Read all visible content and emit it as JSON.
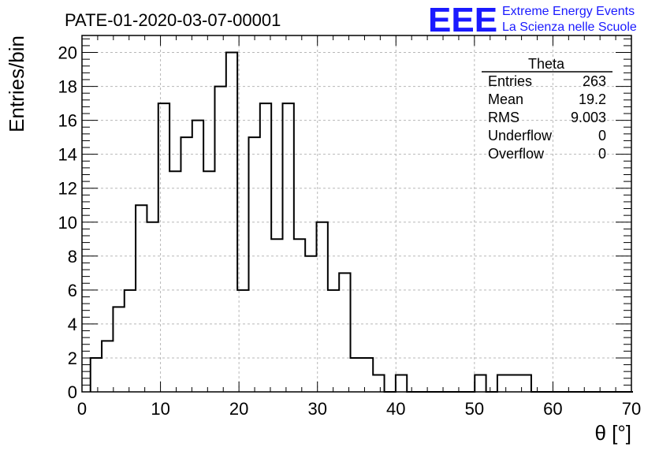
{
  "header": {
    "title": "PATE-01-2020-03-07-00001",
    "logo_text": "EEE",
    "logo_line1": "Extreme Energy Events",
    "logo_line2": "La Scienza nelle Scuole",
    "logo_color": "#1a1aff"
  },
  "stats_box": {
    "name": "Theta",
    "rows": [
      {
        "label": "Entries",
        "value": "263"
      },
      {
        "label": "Mean",
        "value": "19.2"
      },
      {
        "label": "RMS",
        "value": "9.003"
      },
      {
        "label": "Underflow",
        "value": "0"
      },
      {
        "label": "Overflow",
        "value": "0"
      }
    ]
  },
  "chart_data": {
    "type": "bar",
    "subtype": "step-histogram",
    "title": "PATE-01-2020-03-07-00001",
    "xlabel": "θ [°]",
    "ylabel": "Entries/bin",
    "xlim": [
      0,
      70
    ],
    "ylim": [
      0,
      21
    ],
    "grid": true,
    "legend": "none",
    "x_ticks": [
      0,
      10,
      20,
      30,
      40,
      50,
      60,
      70
    ],
    "y_ticks": [
      0,
      2,
      4,
      6,
      8,
      10,
      12,
      14,
      16,
      18,
      20
    ],
    "bin_width": 1.44,
    "bin_start": 1.08,
    "bin_values": [
      2,
      3,
      5,
      6,
      11,
      10,
      17,
      13,
      15,
      16,
      13,
      18,
      20,
      6,
      15,
      17,
      9,
      17,
      9,
      8,
      10,
      6,
      7,
      2,
      2,
      1,
      0,
      1,
      0,
      0,
      0,
      0,
      0,
      0,
      1,
      0,
      1,
      1,
      1,
      0,
      0,
      0,
      0,
      0,
      0,
      0,
      0,
      0
    ],
    "line_color": "#000000"
  }
}
